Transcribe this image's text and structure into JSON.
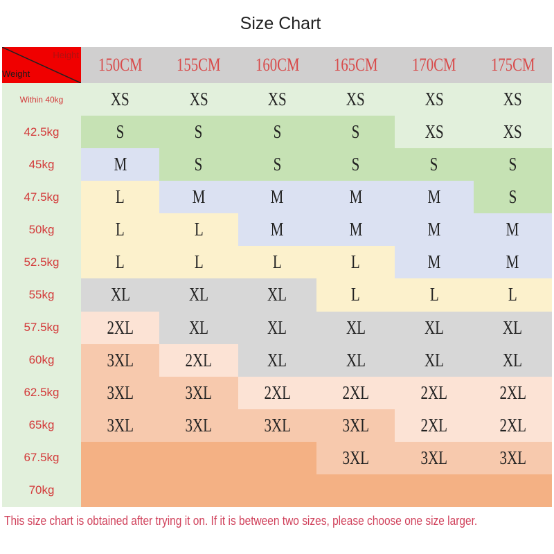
{
  "title": "Size Chart",
  "corner": {
    "height_label": "Height",
    "weight_label": "Weight"
  },
  "heights": [
    "150CM",
    "155CM",
    "160CM",
    "165CM",
    "170CM",
    "175CM"
  ],
  "rows": [
    {
      "weight": "Within 40kg",
      "sizes": [
        "XS",
        "XS",
        "XS",
        "XS",
        "XS",
        "XS"
      ]
    },
    {
      "weight": "42.5kg",
      "sizes": [
        "S",
        "S",
        "S",
        "S",
        "XS",
        "XS"
      ]
    },
    {
      "weight": "45kg",
      "sizes": [
        "M",
        "S",
        "S",
        "S",
        "S",
        "S"
      ]
    },
    {
      "weight": "47.5kg",
      "sizes": [
        "L",
        "M",
        "M",
        "M",
        "M",
        "S"
      ]
    },
    {
      "weight": "50kg",
      "sizes": [
        "L",
        "L",
        "M",
        "M",
        "M",
        "M"
      ]
    },
    {
      "weight": "52.5kg",
      "sizes": [
        "L",
        "L",
        "L",
        "L",
        "M",
        "M"
      ]
    },
    {
      "weight": "55kg",
      "sizes": [
        "XL",
        "XL",
        "XL",
        "L",
        "L",
        "L"
      ]
    },
    {
      "weight": "57.5kg",
      "sizes": [
        "2XL",
        "XL",
        "XL",
        "XL",
        "XL",
        "XL"
      ]
    },
    {
      "weight": "60kg",
      "sizes": [
        "3XL",
        "2XL",
        "XL",
        "XL",
        "XL",
        "XL"
      ]
    },
    {
      "weight": "62.5kg",
      "sizes": [
        "3XL",
        "3XL",
        "2XL",
        "2XL",
        "2XL",
        "2XL"
      ]
    },
    {
      "weight": "65kg",
      "sizes": [
        "3XL",
        "3XL",
        "3XL",
        "3XL",
        "2XL",
        "2XL"
      ]
    },
    {
      "weight": "67.5kg",
      "sizes": [
        "",
        "",
        "",
        "3XL",
        "3XL",
        "3XL"
      ]
    },
    {
      "weight": "70kg",
      "sizes": [
        "",
        "",
        "",
        "",
        "",
        ""
      ]
    }
  ],
  "size_colors": {
    "XS": "#e2f0dc",
    "S": "#c6e2b4",
    "M": "#dbe1f2",
    "L": "#fcf1cc",
    "XL": "#d7d7d7",
    "2XL": "#fce3d5",
    "3XL": "#f7c9ad",
    "": "#f4b184"
  },
  "note": "This size chart is obtained after trying it on. If it is between two sizes, please choose one size larger."
}
